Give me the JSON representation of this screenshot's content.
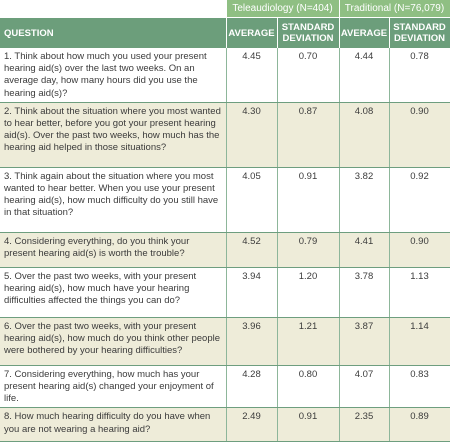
{
  "groups": {
    "tele": "Teleaudiology (N=404)",
    "trad": "Traditional (N=76,079)"
  },
  "headers": {
    "question": "QUESTION",
    "avg": "AVERAGE",
    "sd_line1": "STANDARD",
    "sd_line2": "DEVIATION"
  },
  "rows": [
    {
      "q": "1. Think about how much you used your present hearing aid(s) over the last two weeks. On an average day, how many hours did you use the hearing aid(s)?",
      "tele_avg": "4.45",
      "tele_sd": "0.70",
      "trad_avg": "4.44",
      "trad_sd": "0.78"
    },
    {
      "q": "2. Think about the situation where you most wanted to hear better, before you got your present hearing aid(s). Over the past two weeks, how much has the hearing aid helped in those situations?",
      "tele_avg": "4.30",
      "tele_sd": "0.87",
      "trad_avg": "4.08",
      "trad_sd": "0.90"
    },
    {
      "q": "3. Think again about the situation where you most wanted to hear better. When you use your present hearing aid(s), how much difficulty do you still have in that situation?",
      "tele_avg": "4.05",
      "tele_sd": "0.91",
      "trad_avg": "3.82",
      "trad_sd": "0.92"
    },
    {
      "q": "4. Considering everything, do you think your present hearing aid(s) is worth the trouble?",
      "tele_avg": "4.52",
      "tele_sd": "0.79",
      "trad_avg": "4.41",
      "trad_sd": "0.90"
    },
    {
      "q": "5. Over the past two weeks, with your present hearing aid(s), how much have your hearing difficulties affected the things you can do?",
      "tele_avg": "3.94",
      "tele_sd": "1.20",
      "trad_avg": "3.78",
      "trad_sd": "1.13"
    },
    {
      "q": "6. Over the past two weeks, with your present hearing aid(s), how much do you think other people were bothered by your hearing difficulties?",
      "tele_avg": "3.96",
      "tele_sd": "1.21",
      "trad_avg": "3.87",
      "trad_sd": "1.14"
    },
    {
      "q": "7. Considering everything, how much has your present hearing aid(s) changed your enjoyment of life.",
      "tele_avg": "4.28",
      "tele_sd": "0.80",
      "trad_avg": "4.07",
      "trad_sd": "0.83"
    },
    {
      "q": "8. How much hearing difficulty do you have when you are not wearing a hearing aid?",
      "tele_avg": "2.49",
      "tele_sd": "0.91",
      "trad_avg": "2.35",
      "trad_sd": "0.89"
    }
  ]
}
